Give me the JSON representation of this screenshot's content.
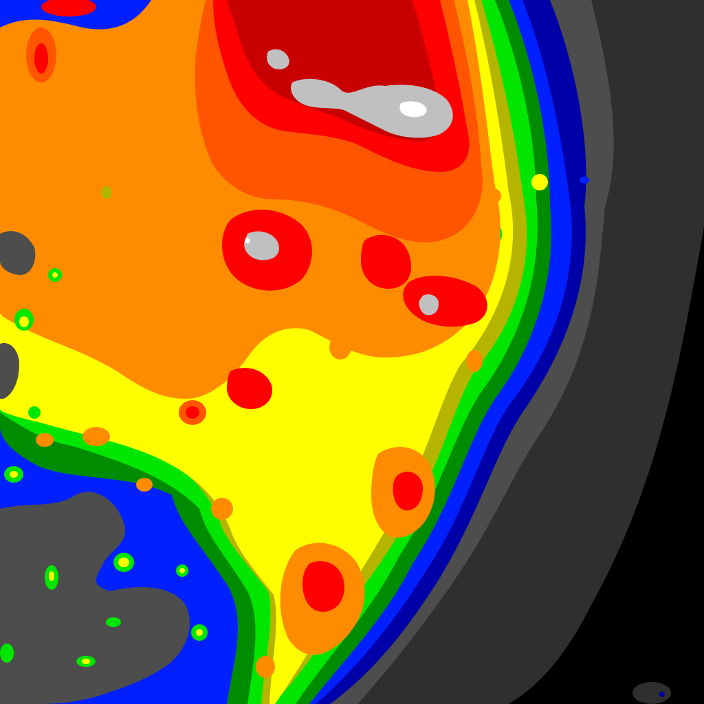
{
  "map": {
    "kind": "light-pollution-contour-map",
    "background": "#000000",
    "zone_colors": {
      "darkest": "#000000",
      "dark_gray": "#2f2f2f",
      "gray": "#4d4d4d",
      "dark_blue": "#0000a8",
      "blue": "#0020ff",
      "dark_green": "#008c00",
      "green": "#00e600",
      "olive": "#b5b500",
      "yellow": "#ffff00",
      "orange": "#ff8c00",
      "dark_orange": "#ff5500",
      "red": "#ff0000",
      "dark_red": "#c80000",
      "light_gray": "#c0c0c0",
      "white": "#ffffff"
    }
  }
}
